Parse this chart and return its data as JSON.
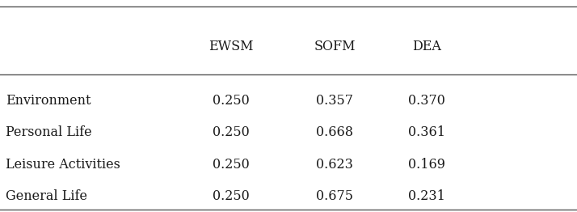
{
  "col_headers": [
    "",
    "EWSM",
    "SOFM",
    "DEA"
  ],
  "row_labels": [
    "Environment",
    "Personal Life",
    "Leisure Activities",
    "General Life"
  ],
  "values": [
    [
      "0.250",
      "0.357",
      "0.370"
    ],
    [
      "0.250",
      "0.668",
      "0.361"
    ],
    [
      "0.250",
      "0.623",
      "0.169"
    ],
    [
      "0.250",
      "0.675",
      "0.231"
    ]
  ],
  "background_color": "#ffffff",
  "text_color": "#1a1a1a",
  "fontsize": 11.5,
  "line_color": "#555555",
  "line_lw": 1.0
}
